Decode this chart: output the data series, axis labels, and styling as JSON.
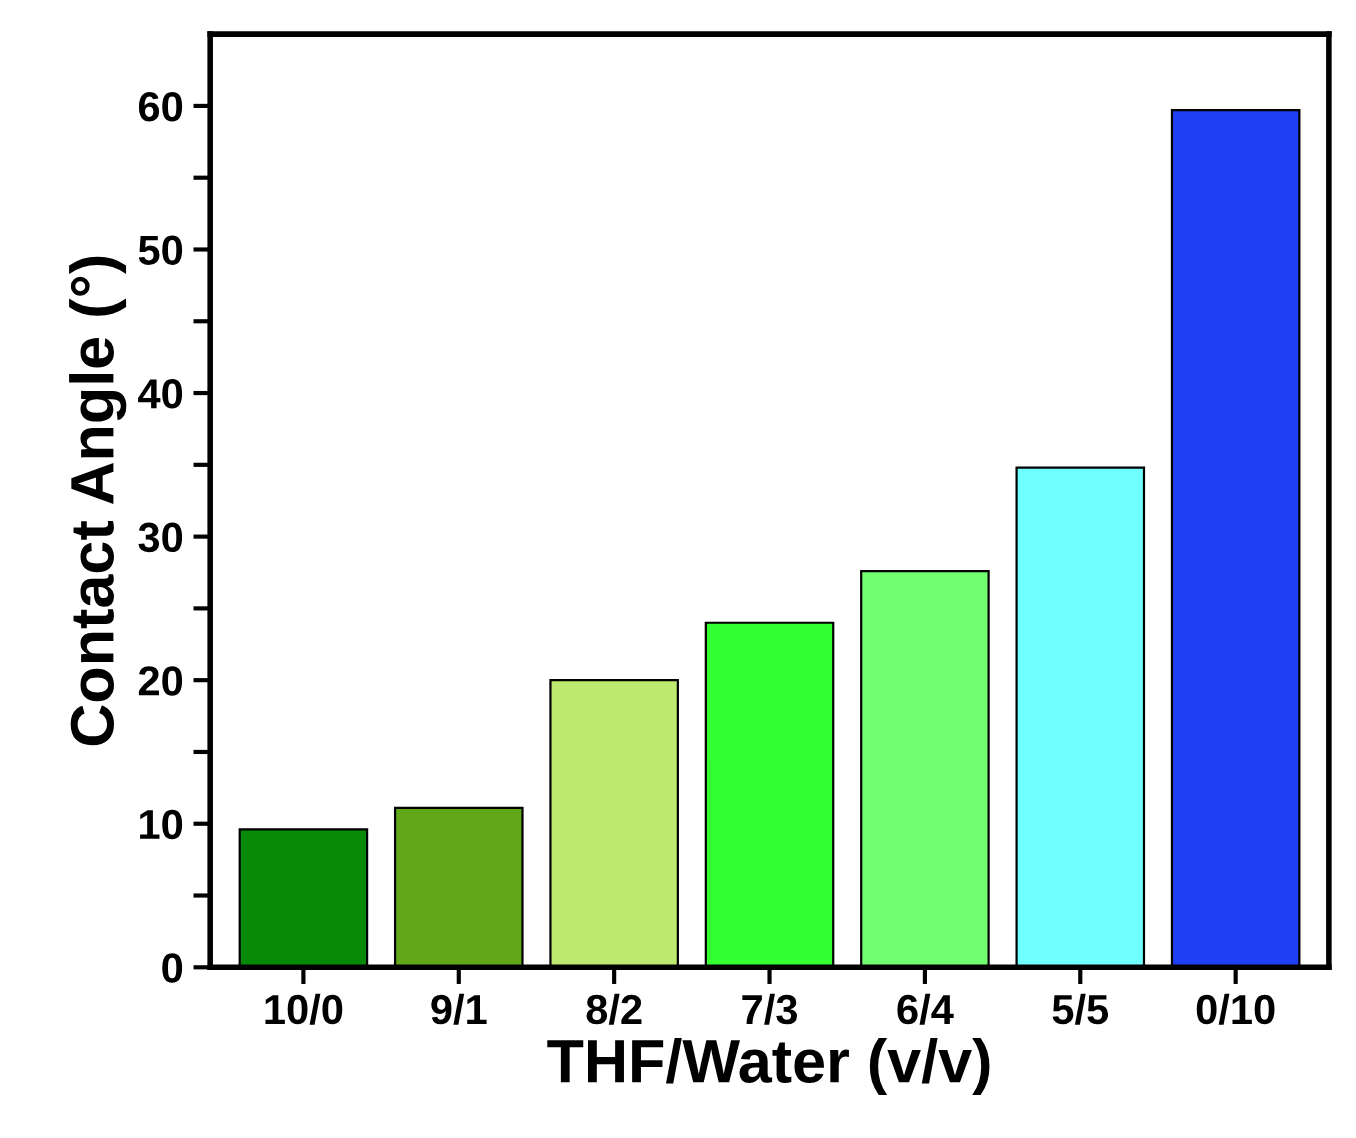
{
  "chart_data": {
    "type": "bar",
    "xlabel": "THF/Water (v/v)",
    "ylabel": "Contact Angle (°)",
    "categories": [
      "10/0",
      "9/1",
      "8/2",
      "7/3",
      "6/4",
      "5/5",
      "0/10"
    ],
    "values": [
      9.6,
      11.1,
      20.0,
      24.0,
      27.6,
      34.8,
      59.7
    ],
    "colors": [
      "#078a07",
      "#62a61a",
      "#bdea6e",
      "#33ff33",
      "#70ff70",
      "#70ffff",
      "#1f3ff5"
    ],
    "ylim": [
      0,
      65
    ],
    "yticks": [
      0,
      {
        "value": 5,
        "label": null
      },
      10,
      {
        "value": 15,
        "label": null
      },
      20,
      {
        "value": 25,
        "label": null
      },
      30,
      {
        "value": 35,
        "label": null
      },
      40,
      {
        "value": 45,
        "label": null
      },
      50,
      {
        "value": 55,
        "label": null
      },
      60
    ],
    "grid": false,
    "legend": false
  }
}
